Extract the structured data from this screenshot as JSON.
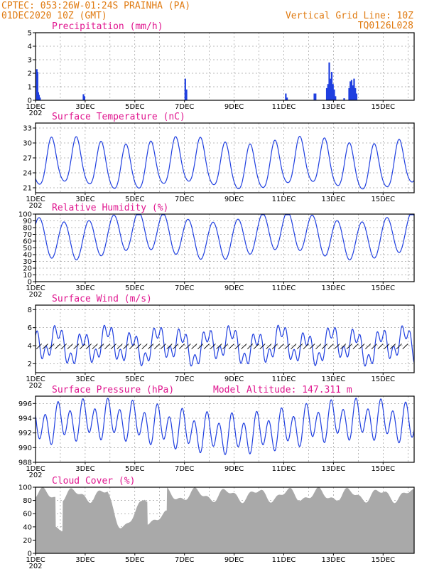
{
  "header": {
    "line1": "CPTEC:  053:26W-01:24S  PRAINHA (PA)",
    "line2": "01DEC2020 10Z (GMT)",
    "right1": "Vertical Grid Line: 10Z",
    "right2": "TQ0126L028"
  },
  "x_ticks": [
    "1DEC",
    "3DEC",
    "5DEC",
    "7DEC",
    "9DEC",
    "11DEC",
    "13DEC",
    "15DEC"
  ],
  "x_year_fragment": "202",
  "colors": {
    "header": "#e07b12",
    "panel_title": "#e0168f",
    "series": "#1f3fe0",
    "cloud": "#a9a9a9",
    "wind_arrow": "#000000"
  },
  "chart_data": [
    {
      "type": "bar",
      "title": "Precipitation (mm/h)",
      "ylim": [
        0,
        5
      ],
      "yticks": [
        0,
        1,
        2,
        3,
        4,
        5
      ],
      "x_range_days": [
        0,
        15.25
      ],
      "x": [
        0.02,
        0.05,
        0.08,
        0.11,
        0.15,
        1.9,
        1.94,
        6.0,
        6.05,
        10.05,
        10.1,
        11.2,
        11.25,
        11.7,
        11.75,
        11.8,
        11.85,
        11.9,
        11.95,
        12.0,
        12.05,
        12.4,
        12.6,
        12.65,
        12.7,
        12.75,
        12.8,
        12.85,
        12.9
      ],
      "values": [
        2.3,
        2.1,
        0.6,
        0.4,
        0.2,
        0.45,
        0.3,
        1.6,
        0.8,
        0.5,
        0.2,
        0.5,
        0.5,
        0.9,
        1.2,
        2.8,
        1.6,
        2.1,
        1.2,
        0.8,
        0.3,
        0.15,
        0.9,
        1.4,
        1.5,
        1.1,
        1.6,
        0.9,
        0.5
      ]
    },
    {
      "type": "line",
      "title": "Surface Temperature (nC)",
      "ylim": [
        20,
        34
      ],
      "yticks": [
        21,
        24,
        27,
        30,
        33
      ],
      "x_range_days": [
        0,
        15.25
      ]
    },
    {
      "type": "line",
      "title": "Relative Humidity (%)",
      "ylim": [
        0,
        100
      ],
      "yticks": [
        0,
        10,
        20,
        30,
        40,
        50,
        60,
        70,
        80,
        90,
        100
      ],
      "x_range_days": [
        0,
        15.25
      ]
    },
    {
      "type": "line",
      "title": "Surface Wind (m/s)",
      "ylim": [
        1,
        8.5
      ],
      "yticks": [
        2,
        4,
        6,
        8
      ],
      "x_range_days": [
        0,
        15.25
      ],
      "arrow_direction_deg": 250
    },
    {
      "type": "line",
      "title": "Surface Pressure (hPa)",
      "annotation": "Model Altitude: 147.311 m",
      "ylim": [
        988,
        997
      ],
      "yticks": [
        988,
        990,
        992,
        994,
        996
      ],
      "x_range_days": [
        0,
        15.25
      ]
    },
    {
      "type": "area",
      "title": "Cloud Cover (%)",
      "ylim": [
        0,
        100
      ],
      "yticks": [
        0,
        20,
        40,
        60,
        80,
        100
      ],
      "x_range_days": [
        0,
        15.25
      ]
    }
  ]
}
